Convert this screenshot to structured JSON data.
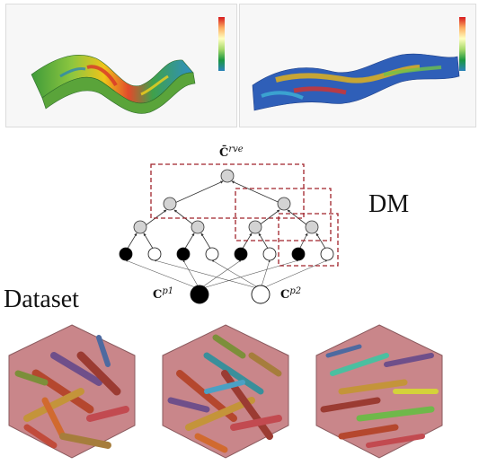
{
  "top_panels": {
    "left": {
      "caption_line1": "",
      "caption_line2": ""
    },
    "right": {
      "caption_line1": "",
      "caption_line2": ""
    }
  },
  "diagram": {
    "root_label": "C̄",
    "root_sup": "rve",
    "dm_label": "DM",
    "input_label_1": "C",
    "input_sup_1": "p1",
    "input_label_2": "C",
    "input_sup_2": "p2",
    "dataset_label": "Dataset"
  },
  "colors": {
    "gray_node": "#d3d3d3",
    "black_node": "#000000",
    "white_node": "#ffffff",
    "dashed_box": "#a0232b",
    "rve_background": "#c9868a"
  }
}
